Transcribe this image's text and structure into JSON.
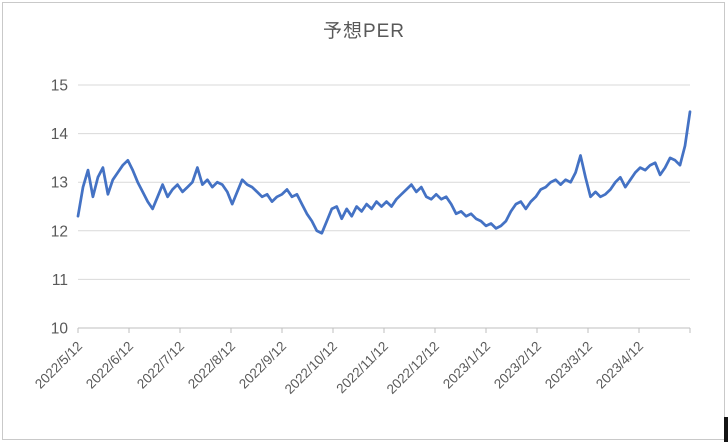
{
  "frame": {
    "border_color": "#c9c9c9",
    "background": "#ffffff",
    "corner_bar_color": "#141414"
  },
  "chart_data": {
    "type": "line",
    "title": "予想PER",
    "legend": "none",
    "grid": "horizontal",
    "text_color": "#595959",
    "grid_color": "#d9d9d9",
    "axis_color": "#bfbfbf",
    "ylim": [
      10,
      15
    ],
    "y_ticks": [
      10,
      11,
      12,
      13,
      14,
      15
    ],
    "x_tick_labels": [
      "2022/5/12",
      "2022/6/12",
      "2022/7/12",
      "2022/8/12",
      "2022/9/12",
      "2022/10/12",
      "2022/11/12",
      "2022/12/12",
      "2023/1/12",
      "2023/2/12",
      "2023/3/12",
      "2023/4/12"
    ],
    "series": [
      {
        "name": "予想PER",
        "color": "#4472c4",
        "values": [
          12.3,
          12.9,
          13.25,
          12.7,
          13.1,
          13.3,
          12.75,
          13.05,
          13.2,
          13.35,
          13.45,
          13.25,
          13.0,
          12.8,
          12.6,
          12.45,
          12.7,
          12.95,
          12.7,
          12.85,
          12.95,
          12.8,
          12.9,
          13.0,
          13.3,
          12.95,
          13.05,
          12.9,
          13.0,
          12.95,
          12.8,
          12.55,
          12.8,
          13.05,
          12.95,
          12.9,
          12.8,
          12.7,
          12.75,
          12.6,
          12.7,
          12.75,
          12.85,
          12.7,
          12.75,
          12.55,
          12.35,
          12.2,
          12.0,
          11.95,
          12.2,
          12.45,
          12.5,
          12.25,
          12.45,
          12.3,
          12.5,
          12.4,
          12.55,
          12.45,
          12.6,
          12.5,
          12.6,
          12.5,
          12.65,
          12.75,
          12.85,
          12.95,
          12.8,
          12.9,
          12.7,
          12.65,
          12.75,
          12.65,
          12.7,
          12.55,
          12.35,
          12.4,
          12.3,
          12.35,
          12.25,
          12.2,
          12.1,
          12.15,
          12.05,
          12.1,
          12.2,
          12.4,
          12.55,
          12.6,
          12.45,
          12.6,
          12.7,
          12.85,
          12.9,
          13.0,
          13.05,
          12.95,
          13.05,
          13.0,
          13.2,
          13.55,
          13.1,
          12.7,
          12.8,
          12.7,
          12.75,
          12.85,
          13.0,
          13.1,
          12.9,
          13.05,
          13.2,
          13.3,
          13.25,
          13.35,
          13.4,
          13.15,
          13.3,
          13.5,
          13.45,
          13.35,
          13.75,
          14.45
        ]
      }
    ]
  }
}
